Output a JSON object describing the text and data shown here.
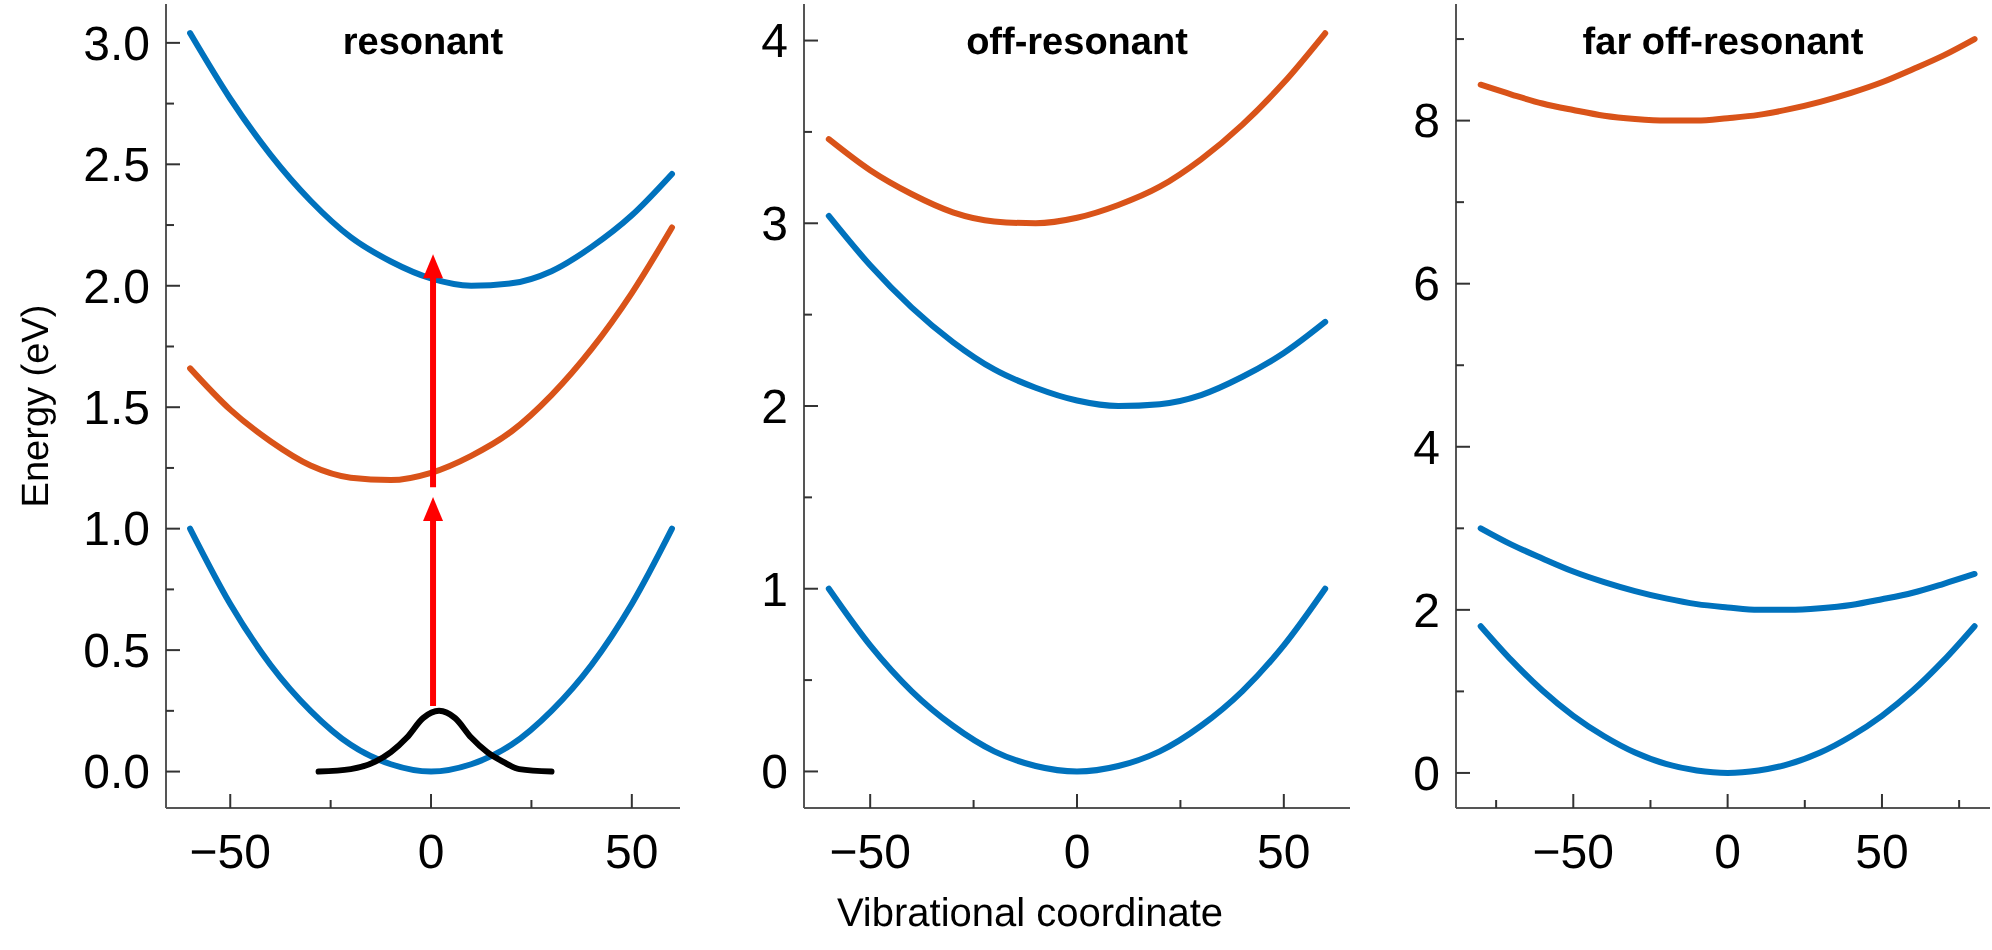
{
  "chart_data": [
    {
      "type": "line",
      "title": "resonant",
      "ylabel": "Energy (eV)",
      "marker": "none",
      "xlim": [
        -66,
        62
      ],
      "xticks": [
        -50,
        {
          "value": -25,
          "label": null
        },
        0,
        {
          "value": 25,
          "label": null
        },
        50
      ],
      "ylim": [
        -0.15,
        3.16
      ],
      "yticks": [
        {
          "value": 0,
          "label": "0.0"
        },
        {
          "value": 0.25,
          "label": null
        },
        0.5,
        {
          "value": 0.75,
          "label": null
        },
        {
          "value": 1,
          "label": "1.0"
        },
        {
          "value": 1.25,
          "label": null
        },
        1.5,
        {
          "value": 1.75,
          "label": null
        },
        {
          "value": 2,
          "label": "2.0"
        },
        {
          "value": 2.25,
          "label": null
        },
        2.5,
        {
          "value": 2.75,
          "label": null
        },
        {
          "value": 3,
          "label": "3.0"
        }
      ],
      "x": [
        -60,
        -50,
        -40,
        -30,
        -20,
        -10,
        0,
        10,
        20,
        30,
        40,
        50,
        60
      ],
      "series": [
        {
          "color": "#0072bd",
          "values": [
            1.0,
            0.69,
            0.44,
            0.25,
            0.11,
            0.03,
            0,
            0.03,
            0.11,
            0.25,
            0.44,
            0.69,
            1.0
          ]
        },
        {
          "color": "#0072bd",
          "values": [
            3.04,
            2.77,
            2.54,
            2.35,
            2.2,
            2.1,
            2.03,
            2.0,
            2.01,
            2.06,
            2.16,
            2.29,
            2.46
          ]
        },
        {
          "color": "#d95319",
          "values": [
            1.66,
            1.49,
            1.36,
            1.26,
            1.21,
            1.2,
            1.23,
            1.3,
            1.4,
            1.55,
            1.74,
            1.97,
            2.24
          ]
        },
        {
          "color": "#000000",
          "x": [
            -28,
            -20,
            -14,
            -10,
            -6,
            -2,
            2,
            6,
            10,
            14,
            18,
            22,
            30
          ],
          "values": [
            0.0,
            0.01,
            0.04,
            0.08,
            0.14,
            0.22,
            0.25,
            0.22,
            0.14,
            0.08,
            0.04,
            0.01,
            0.0
          ]
        }
      ]
    },
    {
      "type": "line",
      "title": "off-resonant",
      "xlabel": "Vibrational coordinate",
      "marker": "none",
      "xlim": [
        -66,
        66
      ],
      "xticks": [
        -50,
        {
          "value": -25,
          "label": null
        },
        0,
        {
          "value": 25,
          "label": null
        },
        50
      ],
      "ylim": [
        -0.2,
        4.2
      ],
      "yticks": [
        0,
        {
          "value": 0.5,
          "label": null
        },
        1,
        {
          "value": 1.5,
          "label": null
        },
        2,
        {
          "value": 2.5,
          "label": null
        },
        3,
        {
          "value": 3.5,
          "label": null
        },
        4
      ],
      "x": [
        -60,
        -50,
        -40,
        -30,
        -20,
        -10,
        0,
        10,
        20,
        30,
        40,
        50,
        60
      ],
      "series": [
        {
          "color": "#0072bd",
          "values": [
            1.0,
            0.69,
            0.44,
            0.25,
            0.11,
            0.03,
            0,
            0.03,
            0.11,
            0.25,
            0.44,
            0.69,
            1.0
          ]
        },
        {
          "color": "#0072bd",
          "values": [
            3.04,
            2.77,
            2.54,
            2.35,
            2.2,
            2.1,
            2.03,
            2.0,
            2.01,
            2.06,
            2.16,
            2.29,
            2.46
          ]
        },
        {
          "color": "#d95319",
          "values": [
            3.46,
            3.29,
            3.16,
            3.06,
            3.01,
            3.0,
            3.03,
            3.1,
            3.2,
            3.35,
            3.54,
            3.77,
            4.04
          ]
        }
      ]
    },
    {
      "type": "line",
      "title": "far off-resonant",
      "marker": "none",
      "xlim": [
        -88,
        85
      ],
      "xticks": [
        {
          "value": -75,
          "label": null
        },
        -50,
        {
          "value": -25,
          "label": null
        },
        0,
        {
          "value": 25,
          "label": null
        },
        50,
        {
          "value": 75,
          "label": null
        }
      ],
      "ylim": [
        -0.43,
        9.43
      ],
      "yticks": [
        0,
        {
          "value": 1,
          "label": null
        },
        2,
        {
          "value": 3,
          "label": null
        },
        4,
        {
          "value": 5,
          "label": null
        },
        6,
        {
          "value": 7,
          "label": null
        },
        8,
        {
          "value": 9,
          "label": null
        }
      ],
      "x": [
        -80,
        -70,
        -60,
        -50,
        -40,
        -30,
        -20,
        -10,
        0,
        10,
        20,
        30,
        40,
        50,
        60,
        70,
        80
      ],
      "series": [
        {
          "color": "#0072bd",
          "values": [
            1.8,
            1.38,
            1.01,
            0.7,
            0.45,
            0.25,
            0.11,
            0.03,
            0,
            0.03,
            0.11,
            0.25,
            0.45,
            0.7,
            1.01,
            1.38,
            1.8
          ]
        },
        {
          "color": "#0072bd",
          "values": [
            3.0,
            2.8,
            2.63,
            2.47,
            2.34,
            2.23,
            2.14,
            2.07,
            2.03,
            2.0,
            2.0,
            2.02,
            2.06,
            2.13,
            2.21,
            2.32,
            2.44
          ]
        },
        {
          "color": "#d95319",
          "values": [
            8.44,
            8.32,
            8.21,
            8.13,
            8.06,
            8.02,
            8.0,
            8.0,
            8.03,
            8.07,
            8.14,
            8.23,
            8.34,
            8.47,
            8.63,
            8.8,
            9.0
          ]
        }
      ]
    }
  ]
}
